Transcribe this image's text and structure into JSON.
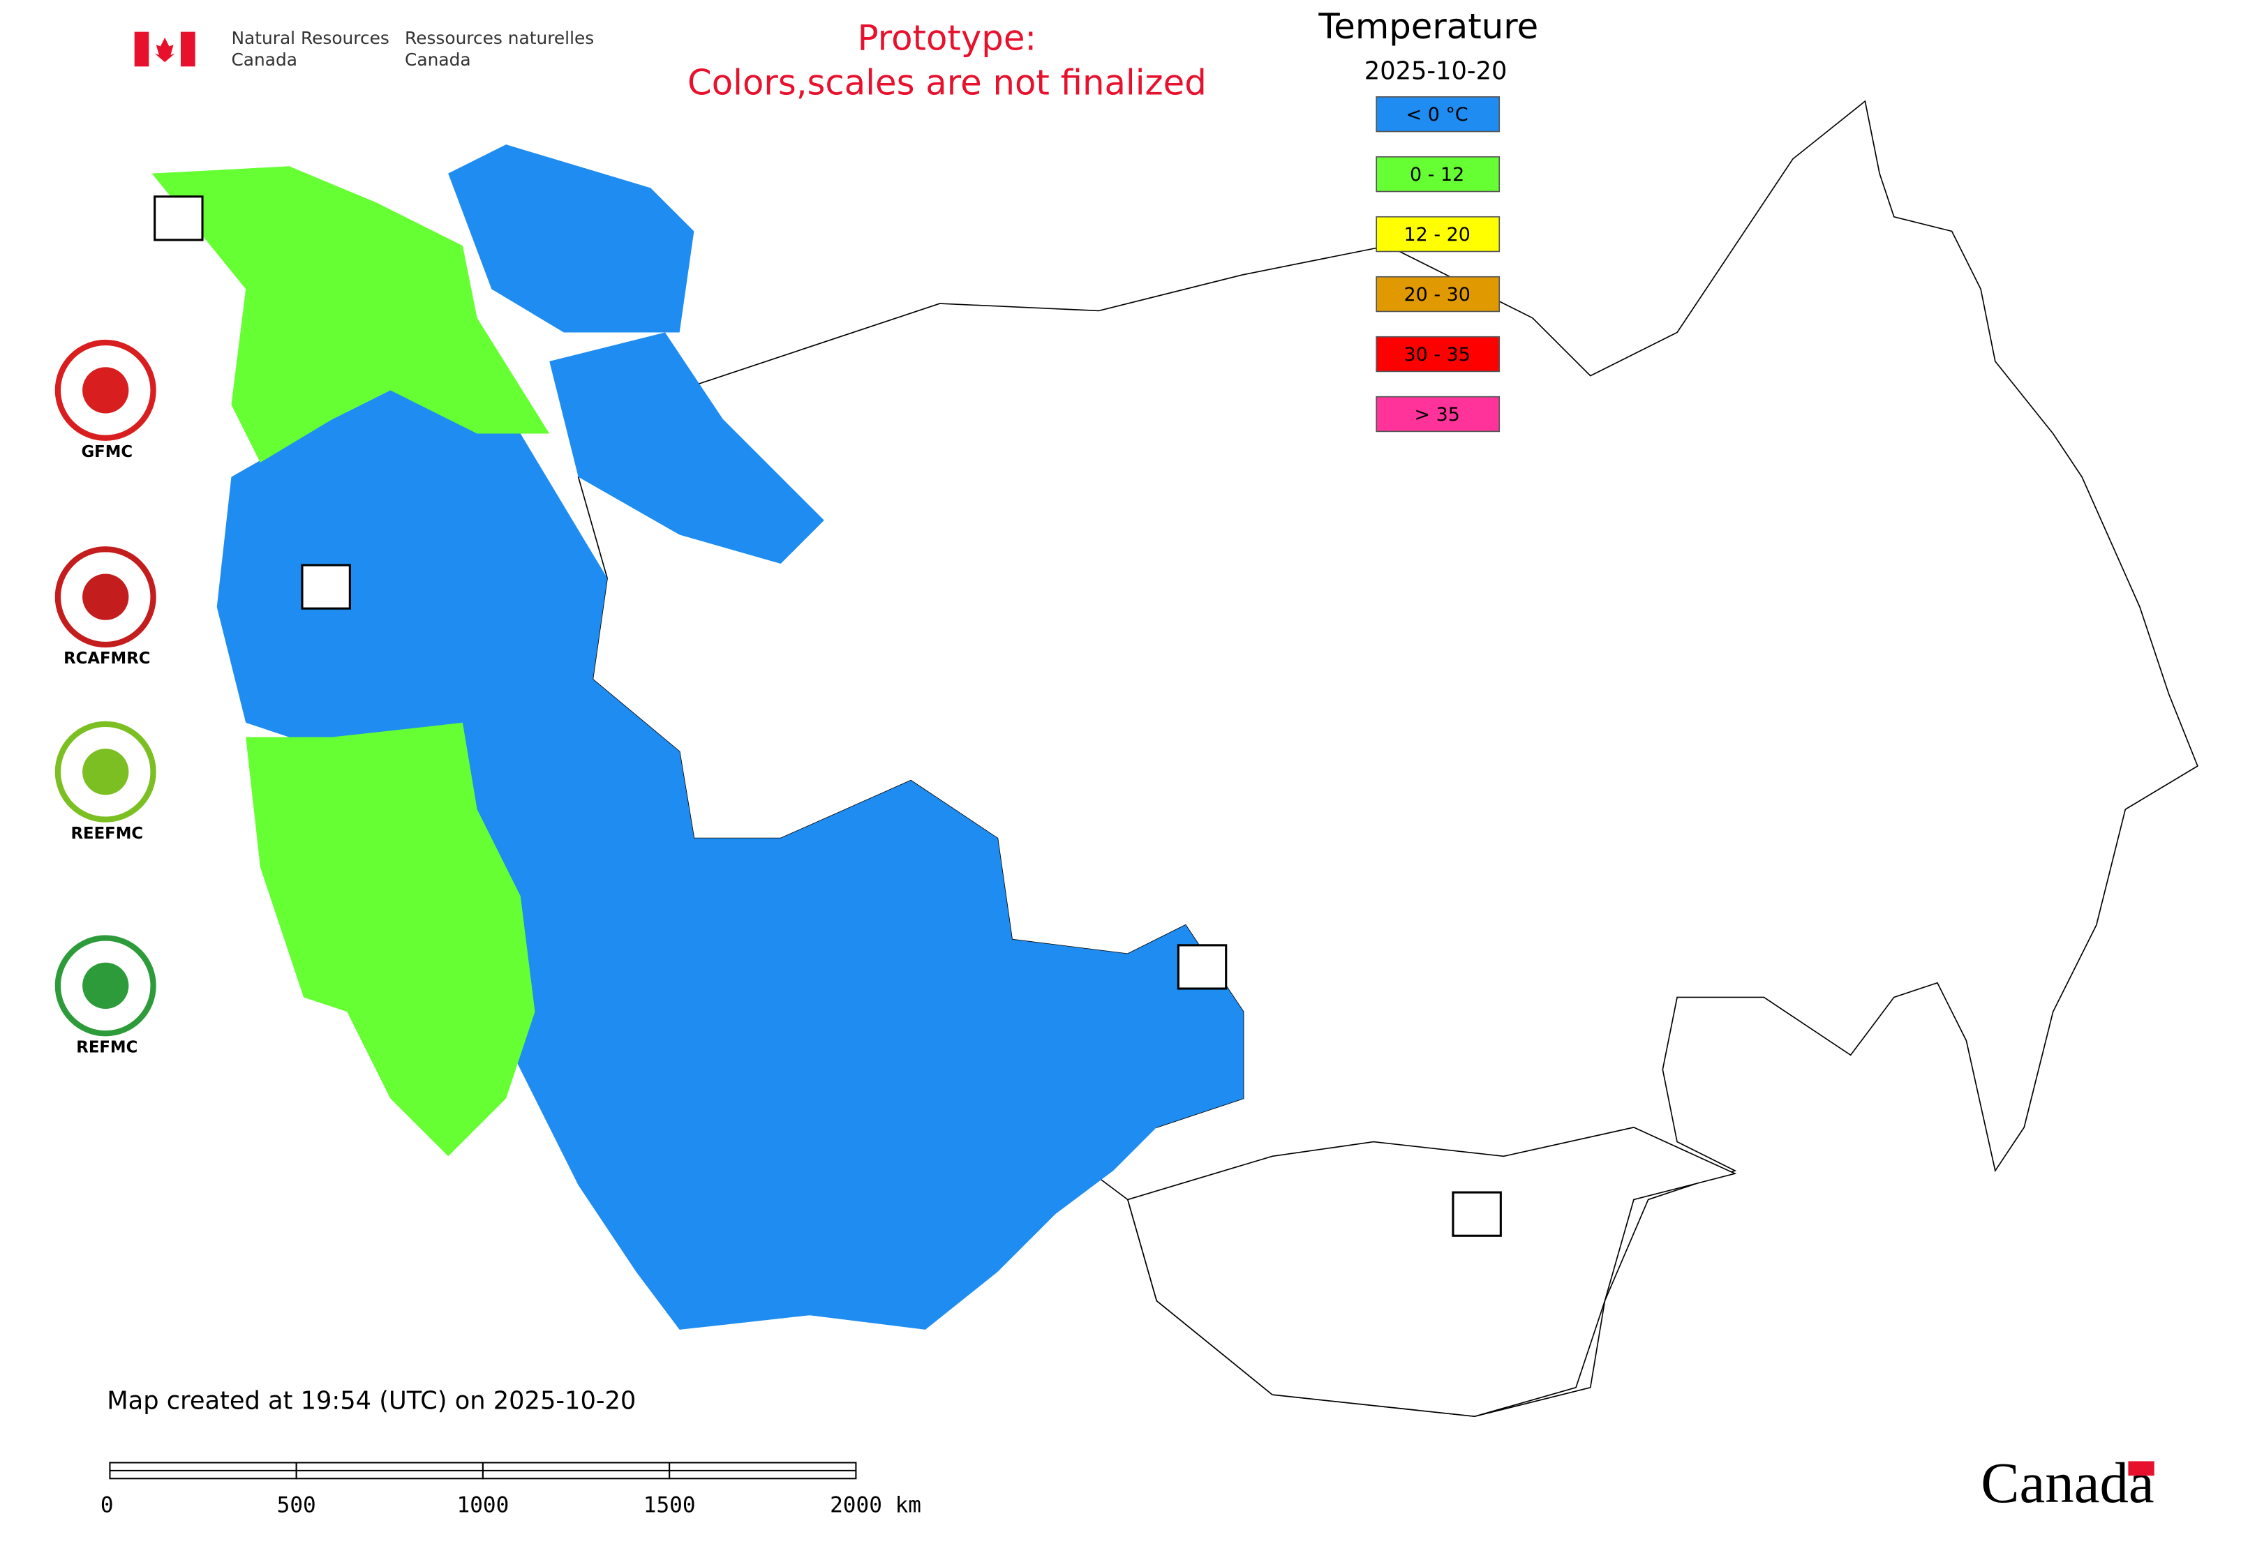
{
  "header": {
    "department_en": [
      "Natural Resources",
      "Canada"
    ],
    "department_fr": [
      "Ressources naturelles",
      "Canada"
    ],
    "notice": [
      "Prototype:",
      "Colors,scales are not finalized"
    ]
  },
  "legend": {
    "title": "Temperature",
    "date": "2025-10-20",
    "items": [
      {
        "label": "< 0 °C",
        "color": "#1e8cf0"
      },
      {
        "label": "0 - 12",
        "color": "#66ff33"
      },
      {
        "label": "12 - 20",
        "color": "#ffff00"
      },
      {
        "label": "20 - 30",
        "color": "#e09a00"
      },
      {
        "label": "30 - 35",
        "color": "#ff0000"
      },
      {
        "label": "> 35",
        "color": "#ff3399"
      }
    ]
  },
  "logos": [
    "GFMC",
    "RCAFMRC",
    "REEFMC",
    "REFMC"
  ],
  "footer": {
    "created": "Map created at 19:54 (UTC) on 2025-10-20",
    "scale_labels": [
      "0",
      "500",
      "1000",
      "1500",
      "2000 km"
    ],
    "wordmark": "Canada"
  }
}
